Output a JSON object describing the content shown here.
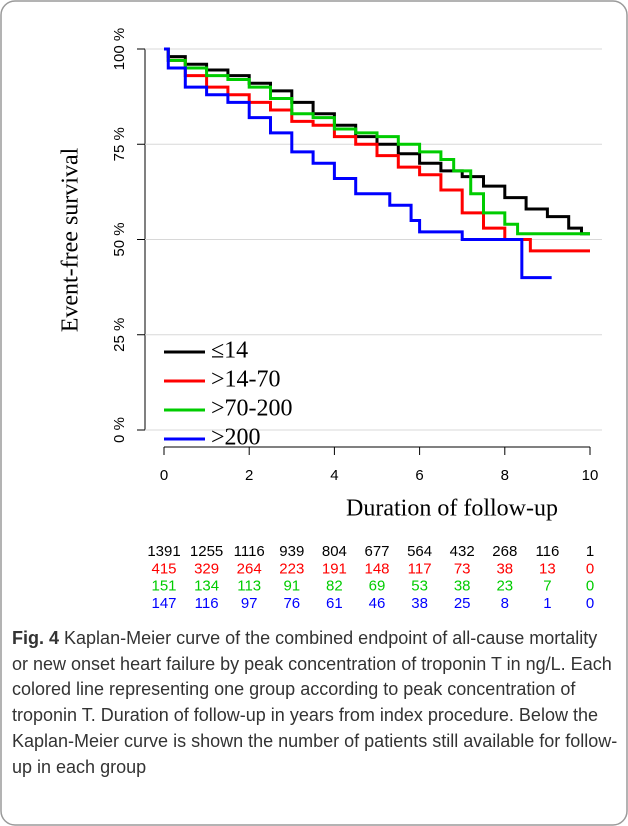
{
  "chart_data": {
    "type": "line",
    "step": true,
    "ylabel": "Event-free survival",
    "xlabel": "Duration of follow-up",
    "xlim": [
      0,
      10
    ],
    "xticks": [
      0,
      2,
      4,
      6,
      8,
      10
    ],
    "ylim": [
      0,
      100
    ],
    "yticks": [
      {
        "value": 0,
        "label": "0 %"
      },
      {
        "value": 25,
        "label": "25 %"
      },
      {
        "value": 50,
        "label": "50 %"
      },
      {
        "value": 75,
        "label": "75 %"
      },
      {
        "value": 100,
        "label": "100 %"
      }
    ],
    "grid": true,
    "legend": "lower left",
    "series": [
      {
        "name": "≤14",
        "color": "#000000",
        "x": [
          0,
          0.1,
          0.5,
          1,
          1.5,
          2,
          2.5,
          3,
          3.5,
          4,
          4.5,
          5,
          5.5,
          6,
          6.5,
          7,
          7.5,
          8,
          8.5,
          9,
          9.5,
          9.8,
          10
        ],
        "values": [
          100,
          98,
          96,
          94.5,
          93,
          91,
          89,
          86,
          83,
          80,
          77,
          75,
          72.5,
          70,
          68,
          66.5,
          64,
          61,
          58,
          56,
          53,
          51.5,
          51.5
        ],
        "at_risk": [
          1391,
          1255,
          1116,
          939,
          804,
          677,
          564,
          432,
          268,
          116,
          1
        ]
      },
      {
        "name": ">14-70",
        "color": "#ff0000",
        "x": [
          0,
          0.1,
          0.5,
          1,
          1.5,
          2,
          2.5,
          3,
          3.5,
          4,
          4.5,
          5,
          5.5,
          6,
          6.5,
          7,
          7.5,
          8,
          8.6,
          10
        ],
        "values": [
          100,
          97,
          93,
          90,
          88,
          86,
          84,
          81,
          80,
          77,
          75,
          72,
          69,
          67,
          63,
          57,
          53,
          50,
          47,
          47
        ],
        "at_risk": [
          415,
          329,
          264,
          223,
          191,
          148,
          117,
          73,
          38,
          13,
          0
        ]
      },
      {
        "name": ">70-200",
        "color": "#00cc00",
        "x": [
          0,
          0.1,
          0.5,
          1,
          1.5,
          2,
          2.5,
          3,
          3.5,
          4,
          4.5,
          5,
          5.5,
          6,
          6.5,
          6.8,
          7.2,
          7.5,
          8,
          8.3,
          10
        ],
        "values": [
          100,
          97,
          95,
          93,
          92,
          90,
          87,
          83,
          82,
          79,
          78,
          77,
          75,
          73,
          71,
          68,
          62,
          57,
          54,
          51.5,
          51.5
        ],
        "at_risk": [
          151,
          134,
          113,
          91,
          82,
          69,
          53,
          38,
          23,
          7,
          0
        ]
      },
      {
        "name": ">200",
        "color": "#0000ff",
        "x": [
          0,
          0.1,
          0.5,
          1,
          1.5,
          2,
          2.5,
          3,
          3.5,
          4,
          4.5,
          5,
          5.3,
          5.8,
          6,
          6.6,
          7,
          8.3,
          8.4,
          9.1
        ],
        "values": [
          100,
          95,
          90,
          88,
          86,
          82,
          78,
          73,
          70,
          66,
          62,
          62,
          59,
          55,
          52,
          52,
          50,
          50,
          40,
          40
        ],
        "at_risk": [
          147,
          116,
          97,
          76,
          61,
          46,
          38,
          25,
          8,
          1,
          0
        ]
      }
    ]
  },
  "caption": {
    "label": "Fig. 4",
    "text": "Kaplan-Meier curve of the combined endpoint of all-cause mortality or new onset heart failure by peak concentration of troponin T in ng/L. Each colored line representing one group according to peak concentration of troponin T. Duration of follow-up in years from index procedure. Below the Kaplan-Meier curve is shown the number of patients still available for follow-up in each group"
  }
}
